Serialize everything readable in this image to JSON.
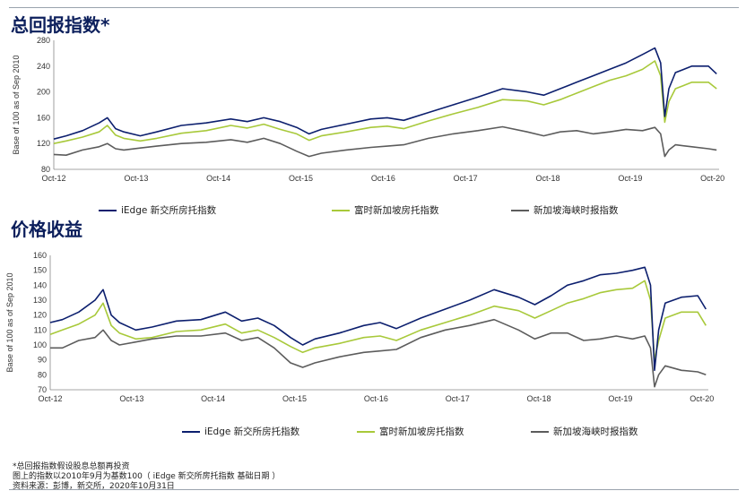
{
  "section_titles": [
    "总回报指数*",
    "价格收益"
  ],
  "colors": {
    "iedge": "#0c1f6e",
    "frasers": "#a8c93a",
    "sti": "#5c5c5c"
  },
  "chart_data": [
    {
      "type": "line",
      "title": "总回报指数*",
      "ylabel": "Base of 100 as of Sep 2010",
      "xlabel": "",
      "ylim": [
        80,
        280
      ],
      "yticks": [
        80,
        120,
        160,
        200,
        240,
        280
      ],
      "x_range": [
        2012.75,
        2020.83
      ],
      "xtick_values": [
        2012.75,
        2013.75,
        2014.75,
        2015.75,
        2016.75,
        2017.75,
        2018.75,
        2019.75,
        2020.75
      ],
      "xtick_labels": [
        "Oct-12",
        "Oct-13",
        "Oct-14",
        "Oct-15",
        "Oct-16",
        "Oct-17",
        "Oct-18",
        "Oct-19",
        "Oct-20"
      ],
      "grid": false,
      "legend_position": "bottom",
      "series": [
        {
          "name": "iEdge 新交所房托指数",
          "color_key": "iedge",
          "x": [
            2012.75,
            2012.9,
            2013.1,
            2013.3,
            2013.4,
            2013.5,
            2013.6,
            2013.8,
            2014.0,
            2014.3,
            2014.6,
            2014.9,
            2015.1,
            2015.3,
            2015.5,
            2015.7,
            2015.85,
            2016.0,
            2016.3,
            2016.6,
            2016.8,
            2017.0,
            2017.3,
            2017.6,
            2017.9,
            2018.2,
            2018.5,
            2018.7,
            2018.9,
            2019.1,
            2019.3,
            2019.5,
            2019.7,
            2019.9,
            2020.05,
            2020.12,
            2020.17,
            2020.22,
            2020.3,
            2020.5,
            2020.7,
            2020.8
          ],
          "y": [
            127,
            132,
            140,
            152,
            160,
            143,
            138,
            132,
            138,
            148,
            152,
            158,
            154,
            160,
            154,
            145,
            135,
            142,
            150,
            158,
            160,
            156,
            168,
            180,
            192,
            205,
            200,
            195,
            205,
            215,
            225,
            235,
            245,
            258,
            268,
            245,
            162,
            205,
            230,
            240,
            240,
            228
          ]
        },
        {
          "name": "富时新加坡房托指数",
          "color_key": "frasers",
          "x": [
            2012.75,
            2012.9,
            2013.1,
            2013.3,
            2013.4,
            2013.5,
            2013.6,
            2013.8,
            2014.0,
            2014.3,
            2014.6,
            2014.9,
            2015.1,
            2015.3,
            2015.5,
            2015.7,
            2015.85,
            2016.0,
            2016.3,
            2016.6,
            2016.8,
            2017.0,
            2017.3,
            2017.6,
            2017.9,
            2018.2,
            2018.5,
            2018.7,
            2018.9,
            2019.1,
            2019.3,
            2019.5,
            2019.7,
            2019.9,
            2020.05,
            2020.12,
            2020.17,
            2020.22,
            2020.3,
            2020.5,
            2020.7,
            2020.8
          ],
          "y": [
            120,
            124,
            130,
            138,
            148,
            133,
            128,
            124,
            128,
            136,
            140,
            148,
            144,
            150,
            142,
            135,
            125,
            132,
            138,
            145,
            147,
            143,
            155,
            166,
            176,
            188,
            186,
            180,
            188,
            198,
            208,
            218,
            225,
            235,
            248,
            225,
            153,
            185,
            205,
            215,
            215,
            205
          ]
        },
        {
          "name": "新加坡海峡时报指数",
          "color_key": "sti",
          "x": [
            2012.75,
            2012.9,
            2013.1,
            2013.3,
            2013.4,
            2013.5,
            2013.6,
            2013.8,
            2014.0,
            2014.3,
            2014.6,
            2014.9,
            2015.1,
            2015.3,
            2015.5,
            2015.7,
            2015.85,
            2016.0,
            2016.3,
            2016.6,
            2016.8,
            2017.0,
            2017.3,
            2017.6,
            2017.9,
            2018.2,
            2018.5,
            2018.7,
            2018.9,
            2019.1,
            2019.3,
            2019.5,
            2019.7,
            2019.9,
            2020.05,
            2020.12,
            2020.17,
            2020.22,
            2020.3,
            2020.5,
            2020.7,
            2020.8
          ],
          "y": [
            103,
            102,
            110,
            115,
            120,
            112,
            110,
            113,
            116,
            120,
            122,
            126,
            122,
            128,
            120,
            108,
            100,
            105,
            110,
            114,
            116,
            118,
            128,
            135,
            140,
            146,
            138,
            132,
            138,
            140,
            135,
            138,
            142,
            140,
            145,
            135,
            100,
            110,
            118,
            115,
            112,
            110
          ]
        }
      ]
    },
    {
      "type": "line",
      "title": "价格收益",
      "ylabel": "Base of 100 as of Sep 2010",
      "xlabel": "",
      "ylim": [
        70,
        160
      ],
      "yticks": [
        70,
        80,
        90,
        100,
        110,
        120,
        130,
        140,
        150,
        160
      ],
      "x_range": [
        2012.75,
        2020.83
      ],
      "xtick_values": [
        2012.75,
        2013.75,
        2014.75,
        2015.75,
        2016.75,
        2017.75,
        2018.75,
        2019.75,
        2020.75
      ],
      "xtick_labels": [
        "Oct-12",
        "Oct-13",
        "Oct-14",
        "Oct-15",
        "Oct-16",
        "Oct-17",
        "Oct-18",
        "Oct-19",
        "Oct-20"
      ],
      "grid": false,
      "legend_position": "bottom",
      "series": [
        {
          "name": "iEdge 新交所房托指数",
          "color_key": "iedge",
          "x": [
            2012.75,
            2012.9,
            2013.1,
            2013.3,
            2013.4,
            2013.5,
            2013.6,
            2013.8,
            2014.0,
            2014.3,
            2014.6,
            2014.9,
            2015.1,
            2015.3,
            2015.5,
            2015.7,
            2015.85,
            2016.0,
            2016.3,
            2016.6,
            2016.8,
            2017.0,
            2017.3,
            2017.6,
            2017.9,
            2018.2,
            2018.5,
            2018.7,
            2018.9,
            2019.1,
            2019.3,
            2019.5,
            2019.7,
            2019.9,
            2020.05,
            2020.12,
            2020.17,
            2020.22,
            2020.3,
            2020.5,
            2020.7,
            2020.8
          ],
          "y": [
            115,
            117,
            122,
            130,
            137,
            120,
            115,
            110,
            112,
            116,
            117,
            122,
            116,
            118,
            113,
            105,
            100,
            104,
            108,
            113,
            115,
            111,
            118,
            124,
            130,
            137,
            132,
            127,
            133,
            140,
            143,
            147,
            148,
            150,
            152,
            140,
            83,
            110,
            128,
            132,
            133,
            124
          ]
        },
        {
          "name": "富时新加坡房托指数",
          "color_key": "frasers",
          "x": [
            2012.75,
            2012.9,
            2013.1,
            2013.3,
            2013.4,
            2013.5,
            2013.6,
            2013.8,
            2014.0,
            2014.3,
            2014.6,
            2014.9,
            2015.1,
            2015.3,
            2015.5,
            2015.7,
            2015.85,
            2016.0,
            2016.3,
            2016.6,
            2016.8,
            2017.0,
            2017.3,
            2017.6,
            2017.9,
            2018.2,
            2018.5,
            2018.7,
            2018.9,
            2019.1,
            2019.3,
            2019.5,
            2019.7,
            2019.9,
            2020.05,
            2020.12,
            2020.17,
            2020.22,
            2020.3,
            2020.5,
            2020.7,
            2020.8
          ],
          "y": [
            107,
            110,
            114,
            120,
            128,
            113,
            108,
            104,
            105,
            109,
            110,
            114,
            108,
            110,
            105,
            99,
            95,
            98,
            101,
            105,
            106,
            103,
            110,
            115,
            120,
            126,
            123,
            118,
            123,
            128,
            131,
            135,
            137,
            138,
            143,
            130,
            90,
            103,
            118,
            122,
            122,
            113
          ]
        },
        {
          "name": "新加坡海峡时报指数",
          "color_key": "sti",
          "x": [
            2012.75,
            2012.9,
            2013.1,
            2013.3,
            2013.4,
            2013.5,
            2013.6,
            2013.8,
            2014.0,
            2014.3,
            2014.6,
            2014.9,
            2015.1,
            2015.3,
            2015.5,
            2015.7,
            2015.85,
            2016.0,
            2016.3,
            2016.6,
            2016.8,
            2017.0,
            2017.3,
            2017.6,
            2017.9,
            2018.2,
            2018.5,
            2018.7,
            2018.9,
            2019.1,
            2019.3,
            2019.5,
            2019.7,
            2019.9,
            2020.05,
            2020.12,
            2020.17,
            2020.22,
            2020.3,
            2020.5,
            2020.7,
            2020.8
          ],
          "y": [
            98,
            98,
            103,
            105,
            110,
            103,
            100,
            102,
            104,
            106,
            106,
            108,
            103,
            105,
            98,
            88,
            85,
            88,
            92,
            95,
            96,
            97,
            105,
            110,
            113,
            117,
            110,
            104,
            108,
            108,
            103,
            104,
            106,
            104,
            106,
            98,
            72,
            80,
            86,
            83,
            82,
            80
          ]
        }
      ]
    }
  ],
  "footnotes": [
    "*总回报指数假设股息总额再投资",
    "图上的指数以2010年9月为基数100（ iEdge 新交所房托指数 基础日期 ）",
    "资料来源：彭博，新交所，2020年10月31日"
  ]
}
